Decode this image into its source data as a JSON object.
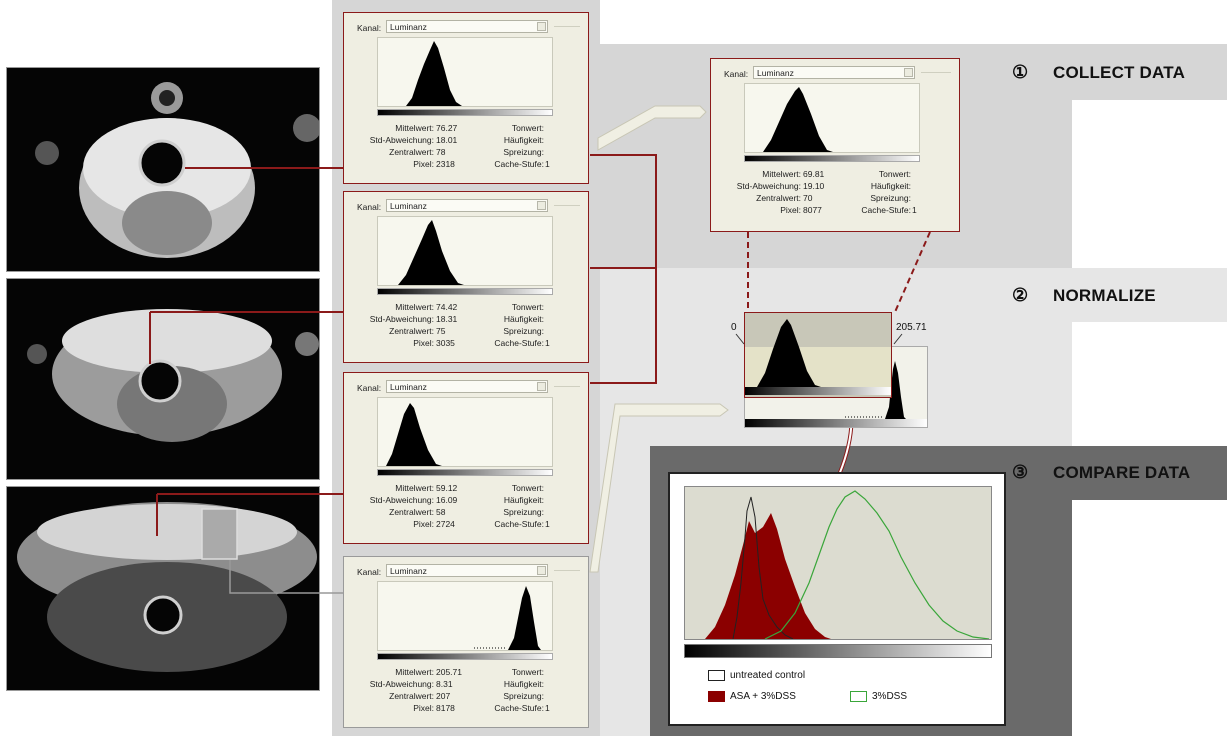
{
  "steps": [
    {
      "num": "①",
      "title": "COLLECT DATA"
    },
    {
      "num": "②",
      "title": "NORMALIZE"
    },
    {
      "num": "③",
      "title": "COMPARE DATA"
    }
  ],
  "panel_labels": {
    "kanal": "Kanal:",
    "mittelwert": "Mittelwert:",
    "std": "Std-Abweichung:",
    "zentral": "Zentralwert:",
    "pixel": "Pixel:",
    "tonwert": "Tonwert:",
    "haeufigkeit": "Häufigkeit:",
    "spreizung": "Spreizung:",
    "cache": "Cache-Stufe:"
  },
  "panels": [
    {
      "channel": "Luminanz",
      "mittelwert": "76.27",
      "std": "18.01",
      "zentral": "78",
      "pixel": "2318",
      "cache": "1"
    },
    {
      "channel": "Luminanz",
      "mittelwert": "74.42",
      "std": "18.31",
      "zentral": "75",
      "pixel": "3035",
      "cache": "1"
    },
    {
      "channel": "Luminanz",
      "mittelwert": "59.12",
      "std": "16.09",
      "zentral": "58",
      "pixel": "2724",
      "cache": "1"
    },
    {
      "channel": "Luminanz",
      "mittelwert": "205.71",
      "std": "8.31",
      "zentral": "207",
      "pixel": "8178",
      "cache": "1"
    },
    {
      "channel": "Luminanz",
      "mittelwert": "69.81",
      "std": "19.10",
      "zentral": "70",
      "pixel": "8077",
      "cache": "1"
    }
  ],
  "normalize": {
    "min_label": "0",
    "max_label": "205.71"
  },
  "legend": [
    {
      "label": "untreated control",
      "fill": "#ffffff",
      "stroke": "#222222"
    },
    {
      "label": "ASA + 3%DSS",
      "fill": "#8b0000",
      "stroke": "#8b0000"
    },
    {
      "label": "3%DSS",
      "fill": "#ffffff",
      "stroke": "#3aa63a"
    }
  ],
  "colors": {
    "accent_red": "#8b1a1a",
    "dss_green": "#3aa63a",
    "asa_red": "#8b0000"
  }
}
